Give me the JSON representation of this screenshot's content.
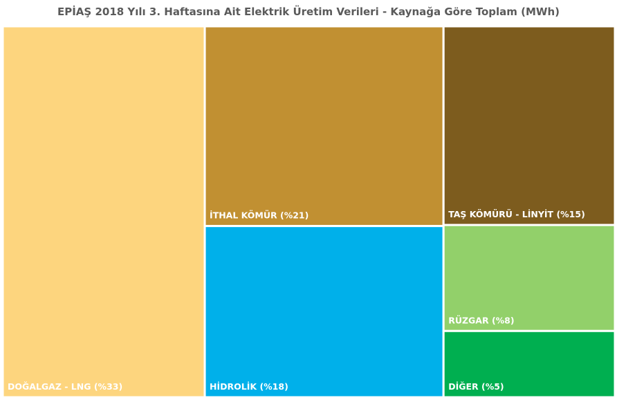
{
  "chart_data": {
    "type": "treemap",
    "title": "EPİAŞ 2018 Yılı 3. Haftasına Ait Elektrik Üretim Verileri - Kaynağa Göre Toplam (MWh)",
    "series": [
      {
        "label": "DOĞALGAZ - LNG (%33)",
        "percent": 33,
        "color": "#FDD57E"
      },
      {
        "label": "İTHAL KÖMÜR (%21)",
        "percent": 21,
        "color": "#C19032"
      },
      {
        "label": "HİDROLİK (%18)",
        "percent": 18,
        "color": "#00B0EA"
      },
      {
        "label": "TAŞ KÖMÜRÜ - LİNYİT (%15)",
        "percent": 15,
        "color": "#7D5C1E"
      },
      {
        "label": "RÜZGAR (%8)",
        "percent": 8,
        "color": "#92D06A"
      },
      {
        "label": "DİĞER (%5)",
        "percent": 5,
        "color": "#00AF50"
      }
    ],
    "label_color": "#ffffff"
  }
}
